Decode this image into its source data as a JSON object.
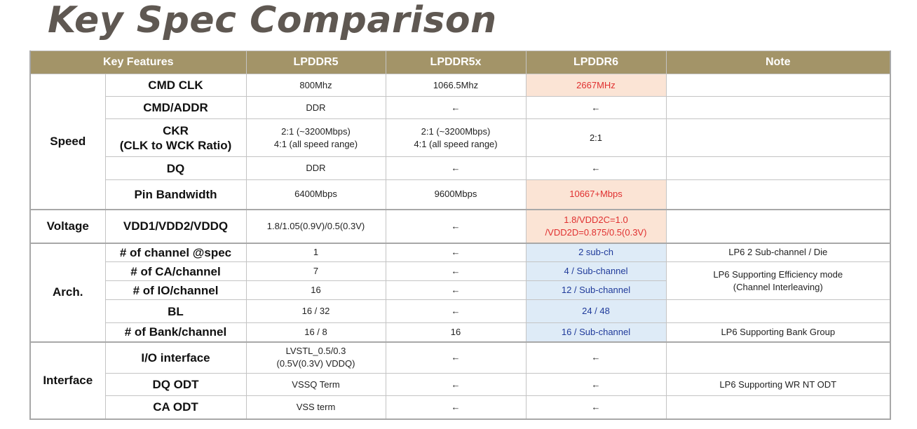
{
  "title": "Key Spec Comparison",
  "headers": [
    "Key Features",
    "LPDDR5",
    "LPDDR5x",
    "LPDDR6",
    "Note"
  ],
  "groups": {
    "speed": "Speed",
    "voltage": "Voltage",
    "arch": "Arch.",
    "interface": "Interface"
  },
  "rows": {
    "cmd_clk": {
      "feature": "CMD CLK",
      "lp5": "800Mhz",
      "lp5x": "1066.5Mhz",
      "lp6": "2667MHz",
      "note": ""
    },
    "cmd_addr": {
      "feature": "CMD/ADDR",
      "lp5": "DDR",
      "lp5x": "←",
      "lp6": "←",
      "note": ""
    },
    "ckr": {
      "feature_1": "CKR",
      "feature_2": "(CLK to WCK Ratio)",
      "lp5_1": "2:1 (~3200Mbps)",
      "lp5_2": "4:1 (all speed range)",
      "lp5x_1": "2:1 (~3200Mbps)",
      "lp5x_2": "4:1 (all speed range)",
      "lp6": "2:1",
      "note": ""
    },
    "dq": {
      "feature": "DQ",
      "lp5": "DDR",
      "lp5x": "←",
      "lp6": "←",
      "note": ""
    },
    "pin_bw": {
      "feature": "Pin Bandwidth",
      "lp5": "6400Mbps",
      "lp5x": "9600Mbps",
      "lp6": "10667+Mbps",
      "note": ""
    },
    "vdd": {
      "feature": "VDD1/VDD2/VDDQ",
      "lp5": "1.8/1.05(0.9V)/0.5(0.3V)",
      "lp5x": "←",
      "lp6_1": "1.8/VDD2C=1.0",
      "lp6_2": "/VDD2D=0.875/0.5(0.3V)",
      "note": ""
    },
    "channel": {
      "feature": "# of channel @spec",
      "lp5": "1",
      "lp5x": "←",
      "lp6": "2 sub-ch",
      "note": "LP6 2 Sub-channel / Die"
    },
    "ca": {
      "feature": "# of CA/channel",
      "lp5": "7",
      "lp5x": "←",
      "lp6": "4 / Sub-channel",
      "note_1": "LP6 Supporting Efficiency mode",
      "note_2": "(Channel Interleaving)"
    },
    "io": {
      "feature": "# of IO/channel",
      "lp5": "16",
      "lp5x": "←",
      "lp6": "12 / Sub-channel"
    },
    "bl": {
      "feature": "BL",
      "lp5": "16 / 32",
      "lp5x": "←",
      "lp6": "24 / 48",
      "note": ""
    },
    "bank": {
      "feature": "# of Bank/channel",
      "lp5": "16 / 8",
      "lp5x": "16",
      "lp6": "16 / Sub-channel",
      "note": "LP6 Supporting Bank Group"
    },
    "io_if": {
      "feature": "I/O interface",
      "lp5_1": "LVSTL_0.5/0.3",
      "lp5_2": "(0.5V(0.3V) VDDQ)",
      "lp5x": "←",
      "lp6": "←",
      "note": ""
    },
    "dq_odt": {
      "feature": "DQ ODT",
      "lp5": "VSSQ Term",
      "lp5x": "←",
      "lp6": "←",
      "note": "LP6 Supporting WR NT ODT"
    },
    "ca_odt": {
      "feature": "CA ODT",
      "lp5": "VSS term",
      "lp5x": "←",
      "lp6": "←",
      "note": ""
    }
  },
  "colors": {
    "header_bg": "#a39468",
    "highlight_pink": "#fbe4d5",
    "highlight_blue": "#deebf7",
    "red_text": "#e03030",
    "blue_text": "#1f3a9a"
  }
}
